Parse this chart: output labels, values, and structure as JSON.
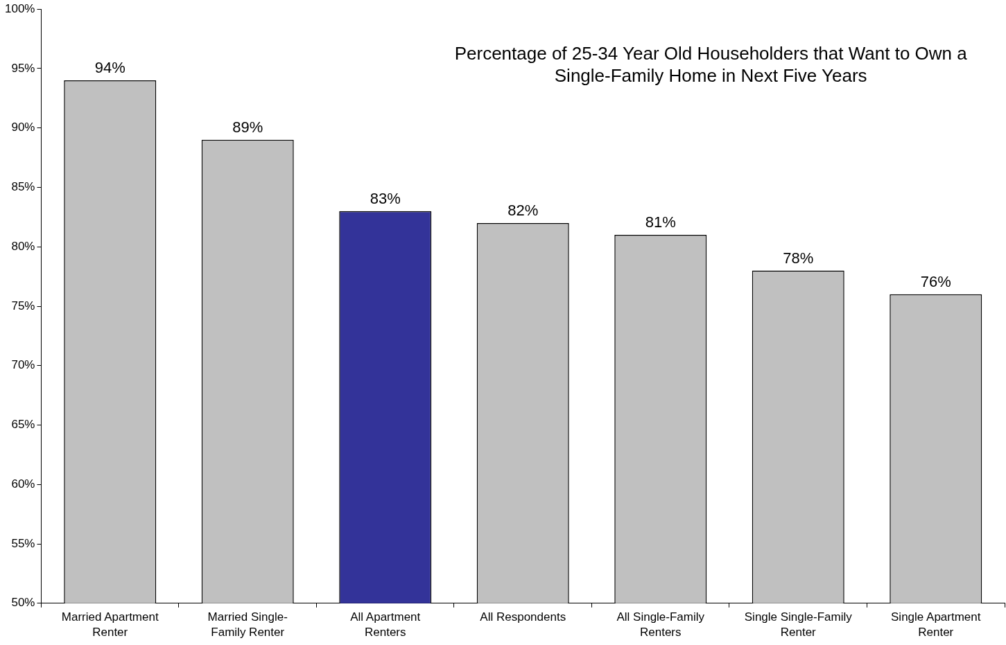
{
  "chart_data": {
    "type": "bar",
    "title": "Percentage of 25-34 Year Old Householders that Want to Own a Single-Family Home in Next Five Years",
    "categories": [
      "Married Apartment Renter",
      "Married Single-Family Renter",
      "All Apartment Renters",
      "All Respondents",
      "All Single-Family Renters",
      "Single Single-Family Renter",
      "Single Apartment Renter"
    ],
    "values": [
      94,
      89,
      83,
      82,
      81,
      78,
      76
    ],
    "colors": [
      "#c0c0c0",
      "#c0c0c0",
      "#333399",
      "#c0c0c0",
      "#c0c0c0",
      "#c0c0c0",
      "#c0c0c0"
    ],
    "ylim": [
      50,
      100
    ],
    "yticks": [
      {
        "value": 50,
        "label": "50%"
      },
      {
        "value": 55,
        "label": "55%"
      },
      {
        "value": 60,
        "label": "60%"
      },
      {
        "value": 65,
        "label": "65%"
      },
      {
        "value": 70,
        "label": "70%"
      },
      {
        "value": 75,
        "label": "75%"
      },
      {
        "value": 80,
        "label": "80%"
      },
      {
        "value": 85,
        "label": "85%"
      },
      {
        "value": 90,
        "label": "90%"
      },
      {
        "value": 95,
        "label": "95%"
      },
      {
        "value": 100,
        "label": "100%"
      }
    ],
    "value_labels": [
      "94%",
      "89%",
      "83%",
      "82%",
      "81%",
      "78%",
      "76%"
    ],
    "grid": false,
    "legend": false
  }
}
